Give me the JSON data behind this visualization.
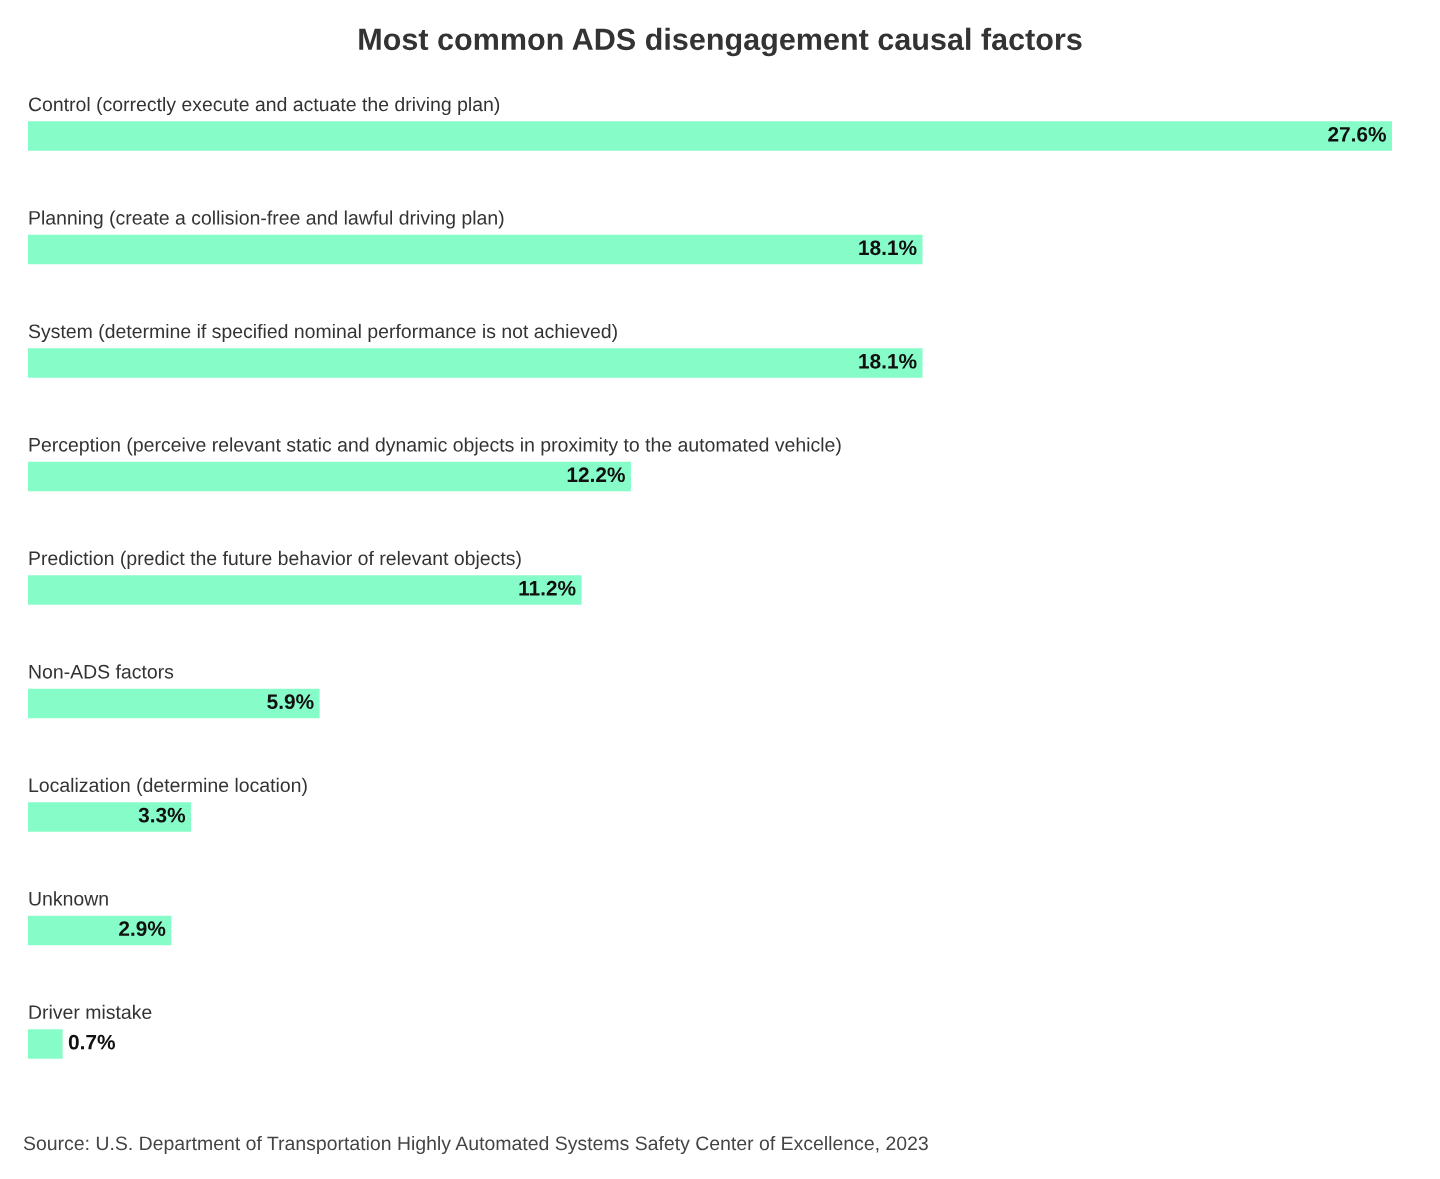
{
  "chart_data": {
    "type": "bar",
    "orientation": "horizontal",
    "title": "Most common ADS disengagement causal factors",
    "categories": [
      "Control (correctly execute and actuate the driving plan)",
      "Planning (create a collision-free and lawful driving plan)",
      "System (determine if specified nominal performance is not achieved)",
      "Perception (perceive relevant static and dynamic objects in proximity to the automated vehicle)",
      "Prediction (predict the future behavior of relevant objects)",
      "Non-ADS factors",
      "Localization (determine location)",
      "Unknown",
      "Driver mistake"
    ],
    "values": [
      27.6,
      18.1,
      18.1,
      12.2,
      11.2,
      5.9,
      3.3,
      2.9,
      0.7
    ],
    "value_labels": [
      "27.6%",
      "18.1%",
      "18.1%",
      "12.2%",
      "11.2%",
      "5.9%",
      "3.3%",
      "2.9%",
      "0.7%"
    ],
    "color": "#86fcc8",
    "legend": false,
    "annotations": [
      "Source: U.S. Department of Transportation Highly Automated Systems Safety Center of Excellence, 2023"
    ]
  }
}
